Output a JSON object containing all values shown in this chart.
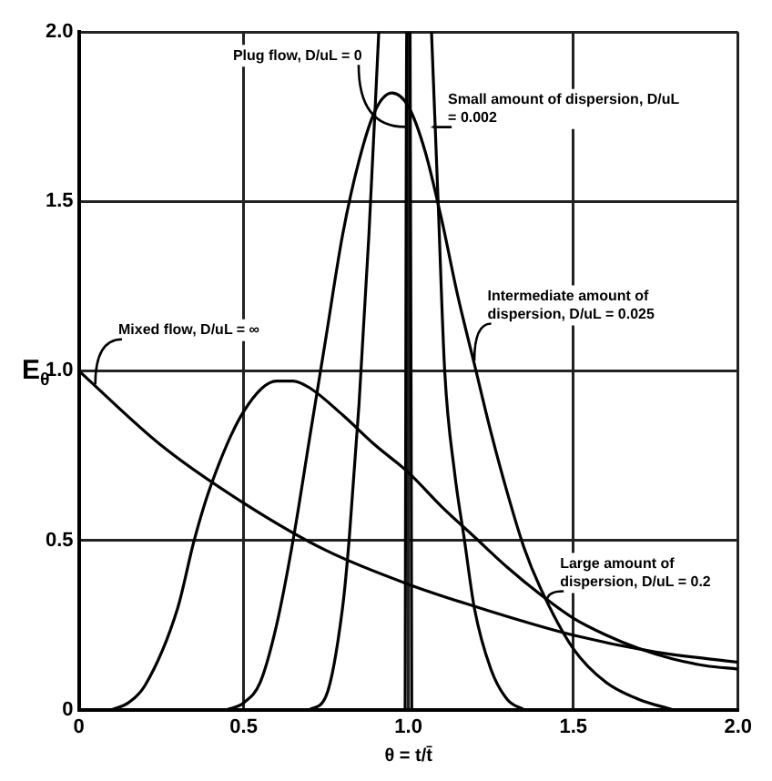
{
  "chart_data": {
    "type": "line",
    "xlabel": "θ = t/t̄",
    "ylabel": "E$_{θ}$",
    "xlim": [
      0,
      2
    ],
    "ylim": [
      0,
      2
    ],
    "xticks": [
      0,
      0.5,
      {
        "value": 1,
        "label": "1.0"
      },
      1.5,
      {
        "value": 2,
        "label": "2.0"
      }
    ],
    "yticks": [
      0,
      0.5,
      {
        "value": 1,
        "label": "1.0"
      },
      1.5,
      {
        "value": 2,
        "label": "2.0"
      }
    ],
    "grid": true,
    "legend": false,
    "marker": "none",
    "line_style": "solid",
    "series": [
      {
        "name": "Mixed flow, D/uL = ∞",
        "color": "#000000",
        "x": [
          0,
          0.25,
          0.5,
          0.75,
          1.0,
          1.25,
          1.5,
          1.75,
          2.0
        ],
        "values": [
          1.0,
          0.78,
          0.61,
          0.47,
          0.37,
          0.29,
          0.22,
          0.17,
          0.14
        ]
      },
      {
        "name": "Large amount of dispersion, D/uL = 0.2",
        "color": "#000000",
        "x": [
          0.1,
          0.15,
          0.2,
          0.3,
          0.35,
          0.4,
          0.5,
          0.6,
          0.65,
          0.7,
          0.8,
          0.9,
          1.0,
          1.1,
          1.2,
          1.3,
          1.4,
          1.5,
          1.6,
          1.7,
          1.8,
          1.9,
          2.0
        ],
        "values": [
          0,
          0.02,
          0.07,
          0.3,
          0.5,
          0.66,
          0.88,
          0.97,
          0.97,
          0.95,
          0.87,
          0.78,
          0.7,
          0.6,
          0.51,
          0.42,
          0.34,
          0.27,
          0.22,
          0.18,
          0.15,
          0.13,
          0.12
        ]
      },
      {
        "name": "Intermediate amount of dispersion, D/uL = 0.025",
        "color": "#000000",
        "x": [
          0.45,
          0.5,
          0.55,
          0.6,
          0.65,
          0.7,
          0.75,
          0.8,
          0.85,
          0.9,
          0.95,
          1.0,
          1.05,
          1.1,
          1.15,
          1.2,
          1.25,
          1.3,
          1.35,
          1.4,
          1.5,
          1.6,
          1.7,
          1.8
        ],
        "values": [
          0,
          0.02,
          0.08,
          0.25,
          0.5,
          0.8,
          1.1,
          1.4,
          1.62,
          1.77,
          1.82,
          1.78,
          1.65,
          1.45,
          1.22,
          1.02,
          0.82,
          0.64,
          0.48,
          0.36,
          0.18,
          0.08,
          0.03,
          0
        ]
      },
      {
        "name": "Small amount of dispersion, D/uL = 0.002",
        "color": "#000000",
        "x": [
          0.7,
          0.75,
          0.8,
          0.82,
          0.85,
          0.88,
          0.91,
          1.0,
          1.07,
          1.09,
          1.11,
          1.14,
          1.17,
          1.2,
          1.25,
          1.3,
          1.35
        ],
        "values": [
          0,
          0.04,
          0.3,
          0.5,
          0.9,
          1.4,
          2.0,
          null,
          2.0,
          1.5,
          1.0,
          0.7,
          0.5,
          0.3,
          0.12,
          0.03,
          0
        ]
      },
      {
        "name": "Plug flow, D/uL = 0",
        "color": "#000000",
        "x": [
          0.99,
          0.995,
          1.005,
          1.01
        ],
        "values": [
          0,
          2,
          2,
          0
        ]
      }
    ]
  }
}
